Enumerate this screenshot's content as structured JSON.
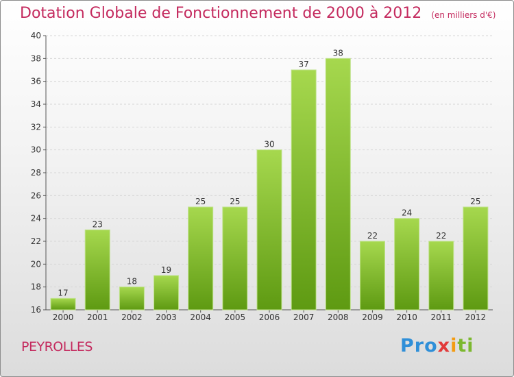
{
  "title": "Dotation Globale de Fonctionnement de 2000 à 2012",
  "subtitle": "(en milliers d'€)",
  "place": "PEYROLLES",
  "logo": {
    "text": "Proxiti",
    "colors": [
      "#2f8fd8",
      "#e23a3a",
      "#f39c12",
      "#7cb82f"
    ]
  },
  "chart_data": {
    "type": "bar",
    "categories": [
      "2000",
      "2001",
      "2002",
      "2003",
      "2004",
      "2005",
      "2006",
      "2007",
      "2008",
      "2009",
      "2010",
      "2011",
      "2012"
    ],
    "values": [
      17,
      23,
      18,
      19,
      25,
      25,
      30,
      37,
      38,
      22,
      24,
      22,
      25
    ],
    "ylim": [
      16,
      40
    ],
    "yticks": [
      16,
      18,
      20,
      22,
      24,
      26,
      28,
      30,
      32,
      34,
      36,
      38,
      40
    ],
    "grid": true,
    "data_labels": true,
    "bar_color": "#7ab82e",
    "title": "Dotation Globale de Fonctionnement de 2000 à 2012"
  }
}
